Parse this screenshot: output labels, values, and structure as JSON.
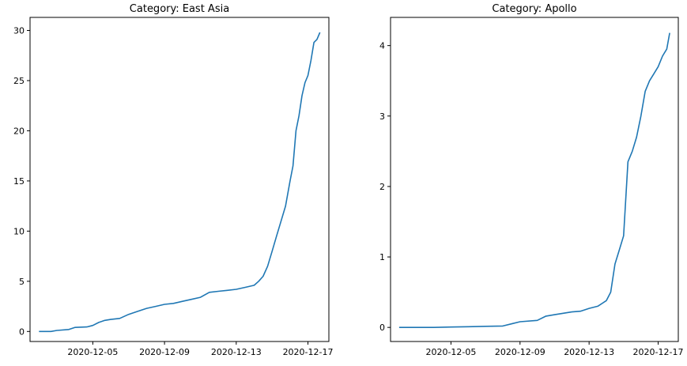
{
  "chart_data": [
    {
      "type": "line",
      "title": "Category: East Asia",
      "xlabel": "",
      "ylabel": "",
      "grid": false,
      "xlim": [
        "2020-12-01T12:00",
        "2020-12-18T04:00"
      ],
      "ylim": [
        -1.0,
        31.3
      ],
      "xticks": [
        "2020-12-05",
        "2020-12-09",
        "2020-12-13",
        "2020-12-17"
      ],
      "yticks": [
        0,
        5,
        10,
        15,
        20,
        25,
        30
      ],
      "color": "#1f77b4",
      "x": [
        "2020-12-02T00:00",
        "2020-12-02T16:00",
        "2020-12-03T00:00",
        "2020-12-03T16:00",
        "2020-12-04T00:00",
        "2020-12-04T16:00",
        "2020-12-05T00:00",
        "2020-12-05T08:00",
        "2020-12-05T16:00",
        "2020-12-06T00:00",
        "2020-12-06T12:00",
        "2020-12-07T00:00",
        "2020-12-07T12:00",
        "2020-12-08T00:00",
        "2020-12-08T12:00",
        "2020-12-09T00:00",
        "2020-12-09T12:00",
        "2020-12-10T00:00",
        "2020-12-10T12:00",
        "2020-12-11T00:00",
        "2020-12-11T12:00",
        "2020-12-12T00:00",
        "2020-12-12T12:00",
        "2020-12-13T00:00",
        "2020-12-13T12:00",
        "2020-12-14T00:00",
        "2020-12-14T06:00",
        "2020-12-14T12:00",
        "2020-12-14T18:00",
        "2020-12-15T00:00",
        "2020-12-15T06:00",
        "2020-12-15T12:00",
        "2020-12-15T18:00",
        "2020-12-16T00:00",
        "2020-12-16T04:00",
        "2020-12-16T08:00",
        "2020-12-16T12:00",
        "2020-12-16T16:00",
        "2020-12-16T20:00",
        "2020-12-17T00:00",
        "2020-12-17T04:00",
        "2020-12-17T08:00",
        "2020-12-17T12:00",
        "2020-12-17T16:00"
      ],
      "values": [
        0.0,
        0.0,
        0.1,
        0.2,
        0.4,
        0.45,
        0.6,
        0.9,
        1.1,
        1.2,
        1.3,
        1.7,
        2.0,
        2.3,
        2.5,
        2.7,
        2.8,
        3.0,
        3.2,
        3.4,
        3.9,
        4.0,
        4.1,
        4.2,
        4.4,
        4.6,
        5.0,
        5.5,
        6.5,
        8.0,
        9.5,
        11.0,
        12.5,
        15.0,
        16.5,
        20.0,
        21.5,
        23.5,
        24.8,
        25.5,
        27.0,
        28.8,
        29.1,
        29.8
      ]
    },
    {
      "type": "line",
      "title": "Category: Apollo",
      "xlabel": "",
      "ylabel": "",
      "grid": false,
      "xlim": [
        "2020-12-01T12:00",
        "2020-12-18T04:00"
      ],
      "ylim": [
        -0.2,
        4.4
      ],
      "xticks": [
        "2020-12-05",
        "2020-12-09",
        "2020-12-13",
        "2020-12-17"
      ],
      "yticks": [
        0,
        1,
        2,
        3,
        4
      ],
      "color": "#1f77b4",
      "x": [
        "2020-12-02T00:00",
        "2020-12-03T00:00",
        "2020-12-04T00:00",
        "2020-12-05T00:00",
        "2020-12-06T00:00",
        "2020-12-07T00:00",
        "2020-12-08T00:00",
        "2020-12-08T12:00",
        "2020-12-09T00:00",
        "2020-12-10T00:00",
        "2020-12-10T12:00",
        "2020-12-11T00:00",
        "2020-12-11T12:00",
        "2020-12-12T00:00",
        "2020-12-12T12:00",
        "2020-12-13T00:00",
        "2020-12-13T12:00",
        "2020-12-14T00:00",
        "2020-12-14T06:00",
        "2020-12-14T12:00",
        "2020-12-14T18:00",
        "2020-12-15T00:00",
        "2020-12-15T06:00",
        "2020-12-15T12:00",
        "2020-12-15T18:00",
        "2020-12-16T00:00",
        "2020-12-16T06:00",
        "2020-12-16T12:00",
        "2020-12-16T18:00",
        "2020-12-17T00:00",
        "2020-12-17T06:00",
        "2020-12-17T12:00",
        "2020-12-17T16:00"
      ],
      "values": [
        0.0,
        0.0,
        0.0,
        0.005,
        0.01,
        0.015,
        0.02,
        0.05,
        0.08,
        0.1,
        0.16,
        0.18,
        0.2,
        0.22,
        0.23,
        0.27,
        0.3,
        0.38,
        0.5,
        0.9,
        1.1,
        1.3,
        2.35,
        2.5,
        2.7,
        3.0,
        3.35,
        3.5,
        3.6,
        3.7,
        3.85,
        3.95,
        4.18
      ]
    }
  ]
}
